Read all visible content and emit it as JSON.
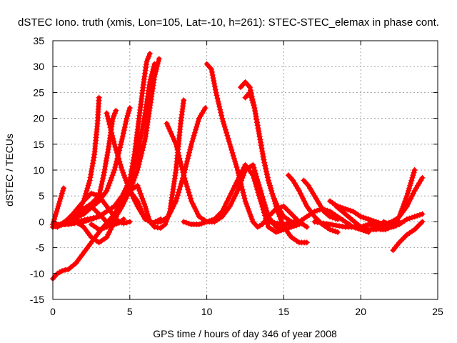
{
  "chart_data": {
    "type": "line",
    "title": "dSTEC Iono. truth (xmis, Lon=105, Lat=-10, h=261): STEC-STEC_elemax in phase cont.",
    "xlabel": "GPS time / hours of day 346 of year 2008",
    "ylabel": "dSTEC  / TECUs",
    "xlim": [
      0,
      25
    ],
    "ylim": [
      -15,
      35
    ],
    "xticks": [
      0,
      5,
      10,
      15,
      20,
      25
    ],
    "yticks": [
      -15,
      -10,
      -5,
      0,
      5,
      10,
      15,
      20,
      25,
      30,
      35
    ],
    "grid": true,
    "marker": "plus",
    "color": "#ff0000",
    "series": [
      {
        "x": [
          0,
          0.2,
          0.4,
          0.6,
          0.7
        ],
        "y": [
          -0.5,
          1.5,
          3.5,
          5.5,
          6.5
        ]
      },
      {
        "x": [
          0,
          0.5,
          1.0,
          1.5,
          2.0,
          2.4,
          2.7,
          2.9,
          3.0
        ],
        "y": [
          -1,
          -0.5,
          0,
          1.5,
          4,
          8,
          13,
          19,
          24
        ]
      },
      {
        "x": [
          0,
          0.5,
          1.0,
          1.5,
          2.0,
          2.5,
          3.0,
          3.3,
          3.6,
          3.9,
          4.1
        ],
        "y": [
          -1,
          -0.5,
          0.5,
          1.5,
          2.5,
          3.5,
          5,
          9,
          14,
          20,
          21.5
        ]
      },
      {
        "x": [
          0,
          1.0,
          2.0,
          3.0,
          3.5,
          4.0,
          4.5,
          4.8,
          5.0
        ],
        "y": [
          -1,
          0,
          1.5,
          4,
          6,
          10,
          16,
          20,
          22
        ]
      },
      {
        "x": [
          0,
          0.3,
          0.6,
          0.8,
          1.0,
          1.5,
          2.0,
          3.0,
          4.0,
          4.5,
          5.0,
          5.3,
          5.6,
          5.9,
          6.1,
          6.3
        ],
        "y": [
          -11,
          -10,
          -9.5,
          -9.3,
          -9.2,
          -8,
          -6,
          -2,
          1.5,
          4,
          8,
          13,
          20,
          27,
          31,
          32.5
        ]
      },
      {
        "x": [
          0,
          1.0,
          2.0,
          3.0,
          4.0,
          4.5,
          5.0,
          5.5,
          6.0,
          6.3,
          6.6
        ],
        "y": [
          -0.5,
          -0.5,
          0,
          1,
          3,
          5,
          8,
          13,
          21,
          27,
          30.5
        ]
      },
      {
        "x": [
          0,
          1.5,
          3.0,
          4.0,
          5.0,
          5.5,
          6.0,
          6.3,
          6.6,
          6.9
        ],
        "y": [
          -1,
          0,
          1,
          3,
          6,
          10,
          16,
          22,
          28,
          31.5
        ]
      },
      {
        "x": [
          0.3,
          0.8,
          1.3,
          2.0,
          2.5,
          3.0,
          3.5,
          4.0,
          4.3,
          4.6,
          5.0
        ],
        "y": [
          -1,
          0,
          1.5,
          4,
          5.5,
          5,
          3,
          1,
          0,
          -0.3,
          0
        ]
      },
      {
        "x": [
          1.0,
          1.5,
          2.0,
          2.5,
          3.0,
          3.5,
          4.0,
          4.3,
          4.6
        ],
        "y": [
          0,
          1,
          2.5,
          3,
          1.5,
          0,
          -0.5,
          -0.2,
          0.5
        ]
      },
      {
        "x": [
          1.5,
          2.0,
          2.5,
          3.0,
          3.5,
          4.0,
          4.5,
          5.0,
          5.5,
          6.0,
          6.5,
          7.0
        ],
        "y": [
          0,
          -1,
          -3,
          -4,
          -3,
          0,
          4,
          6,
          4,
          0.5,
          -0.2,
          0.5
        ]
      },
      {
        "x": [
          2.5,
          3.0,
          3.5,
          4.0,
          4.5,
          5.0,
          5.5,
          6.0,
          6.3,
          6.6,
          7.0,
          7.3,
          7.6,
          8.0,
          8.3,
          8.5
        ],
        "y": [
          -0.5,
          -1.5,
          -1,
          0.5,
          3,
          6,
          7,
          3,
          0,
          -1,
          -1.2,
          -0.5,
          2,
          10,
          19,
          23.5
        ]
      },
      {
        "x": [
          3.5,
          4.0,
          4.5,
          5.0,
          5.5,
          6.0,
          6.5,
          7.0,
          7.5,
          8.0,
          8.5,
          9.0,
          9.5,
          9.9
        ],
        "y": [
          21,
          15,
          10,
          6,
          3,
          0.5,
          -0.2,
          0,
          1,
          4,
          9,
          15,
          20,
          22
        ]
      },
      {
        "x": [
          7.4,
          8.0,
          8.5,
          9.0,
          9.5,
          10.0,
          10.5,
          11.0,
          11.5,
          12.0,
          12.5,
          13.0,
          13.5,
          14.0,
          14.5,
          15.0
        ],
        "y": [
          19,
          15,
          9,
          4,
          1,
          0,
          0,
          1,
          3,
          6,
          10,
          11,
          6,
          1,
          -1,
          -1.5
        ]
      },
      {
        "x": [
          8.5,
          9.0,
          9.5,
          10.0,
          10.5,
          11.0,
          11.5,
          12.0,
          12.5,
          13.0,
          13.5,
          14.0,
          14.5,
          15.0,
          15.5,
          16.0
        ],
        "y": [
          0,
          -0.5,
          -0.5,
          0,
          0.5,
          2,
          5,
          8,
          11,
          9,
          4,
          -1,
          -2,
          -1.5,
          -1,
          -0.5
        ]
      },
      {
        "x": [
          10.0,
          10.3,
          10.6,
          11.0,
          11.5,
          12.0,
          12.5,
          13.0,
          13.3,
          13.6,
          14.0,
          14.5,
          15.0,
          15.5,
          16.0,
          16.5
        ],
        "y": [
          30.5,
          29.5,
          25,
          20,
          15,
          10,
          4,
          0,
          -1,
          -0.5,
          1,
          2.5,
          3,
          1.5,
          0,
          -1
        ]
      },
      {
        "x": [
          12.2,
          12.5,
          12.8,
          13.1,
          13.4,
          13.7,
          14.0,
          14.3,
          14.6,
          15.0,
          15.5,
          16.0,
          16.5
        ],
        "y": [
          26,
          27,
          26,
          22,
          17,
          12,
          8,
          5,
          2,
          -1,
          -3,
          -4,
          -4
        ]
      },
      {
        "x": [
          12.5,
          12.8,
          13.1,
          13.4,
          13.7,
          14.0,
          14.3,
          14.6,
          15.0,
          15.5,
          16.0
        ],
        "y": [
          24,
          25,
          22,
          17,
          12,
          8,
          5,
          3,
          1,
          0,
          0
        ]
      },
      {
        "x": [
          15.3,
          15.6,
          16.0,
          16.5,
          17.0,
          17.5,
          18.0,
          18.5
        ],
        "y": [
          9,
          8,
          6,
          3,
          1,
          -0.5,
          -1.5,
          -2
        ]
      },
      {
        "x": [
          16.3,
          16.6,
          17.0,
          17.3,
          17.6,
          18.0,
          18.5
        ],
        "y": [
          8,
          7,
          5,
          3.5,
          2,
          1,
          0.5
        ]
      },
      {
        "x": [
          14.0,
          15.0,
          16.0,
          16.5,
          17.0,
          17.5,
          18.0,
          18.5,
          19.0,
          19.5,
          20.0,
          20.5
        ],
        "y": [
          0,
          -0.5,
          0,
          1,
          2,
          2.5,
          2,
          1,
          0,
          -1,
          -1.5,
          -2
        ]
      },
      {
        "x": [
          18.0,
          18.5,
          19.0,
          19.5,
          20.0,
          20.5,
          21.0,
          21.5,
          22.0,
          22.3
        ],
        "y": [
          4,
          3,
          2.5,
          2,
          1,
          0.5,
          0,
          -0.5,
          0,
          0.5
        ]
      },
      {
        "x": [
          18.4,
          18.8,
          19.2,
          19.6,
          20.0,
          20.5,
          21.0,
          21.5,
          22.0,
          22.5
        ],
        "y": [
          3,
          2,
          1,
          0,
          -1,
          -1.5,
          -1.5,
          -1,
          -0.5,
          0
        ]
      },
      {
        "x": [
          17.0,
          18.0,
          19.0,
          20.0,
          20.5,
          21.0,
          21.3,
          21.6,
          22.0,
          22.5,
          23.0,
          23.3,
          23.5
        ],
        "y": [
          0,
          -0.5,
          -1,
          -1,
          -0.5,
          -1,
          -1.5,
          -1.5,
          -1,
          1,
          5,
          8,
          10
        ]
      },
      {
        "x": [
          20.0,
          20.5,
          21.0,
          21.3,
          21.6,
          22.0,
          22.5,
          23.0,
          23.5,
          24.0
        ],
        "y": [
          1,
          0.5,
          -0.5,
          -1,
          -1,
          -0.5,
          1,
          3,
          6,
          8.5
        ]
      },
      {
        "x": [
          21.5,
          21.8,
          22.1,
          22.5,
          23.0,
          23.5,
          24.0
        ],
        "y": [
          0,
          -0.5,
          -1,
          -0.5,
          0.5,
          1,
          1.5
        ]
      },
      {
        "x": [
          22.1,
          22.5,
          23.0,
          23.5,
          24.0
        ],
        "y": [
          -5.5,
          -4,
          -2.5,
          -1.5,
          0
        ]
      }
    ]
  }
}
